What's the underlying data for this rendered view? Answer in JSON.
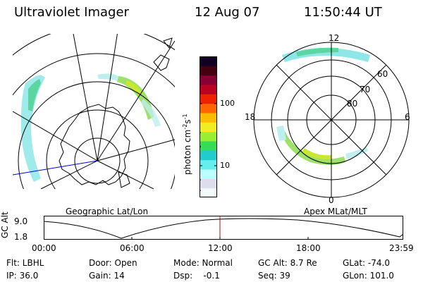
{
  "header": {
    "instrument": "Ultraviolet Imager",
    "date": "12 Aug 07",
    "time": "11:50:44 UT"
  },
  "geographic_panel": {
    "label": "Geographic Lat/Lon"
  },
  "magnetic_panel": {
    "label": "Apex MLat/MLT",
    "mlt_labels": [
      "12",
      "18",
      "6",
      "0"
    ],
    "mlat_labels": [
      "60",
      "70",
      "80"
    ]
  },
  "colorbar": {
    "unit_text": "photon cm",
    "unit_sup1": "-2",
    "unit_s": "s",
    "unit_sup2": "-1",
    "tick_labels": [
      "100",
      "10"
    ],
    "colors": [
      "#f2fafa",
      "#dde",
      "#bff",
      "#6ee",
      "#2cc",
      "#3d5",
      "#9e3",
      "#ee2",
      "#fb0",
      "#f60",
      "#e20",
      "#b02",
      "#803",
      "#401",
      "#102"
    ]
  },
  "altitude_plot": {
    "ylabel": "GC Alt",
    "ytick_labels": [
      "9.0",
      "1.8"
    ],
    "xtick_labels": [
      "00:00",
      "06:00",
      "12:00",
      "18:00",
      "23:59"
    ],
    "marker_color": "#cc0000"
  },
  "status": {
    "flt": "Flt: LBHL",
    "door": "Door: Open",
    "mode": "Mode: Normal",
    "gc_alt": "GC Alt: 8.7 Re",
    "glat": "GLat: -74.0",
    "ip": "IP: 36.0",
    "gain": "Gain: 14",
    "dsp": "Dsp:    -0.1",
    "seq": "Seq: 39",
    "glon": "GLon: 101.0"
  }
}
